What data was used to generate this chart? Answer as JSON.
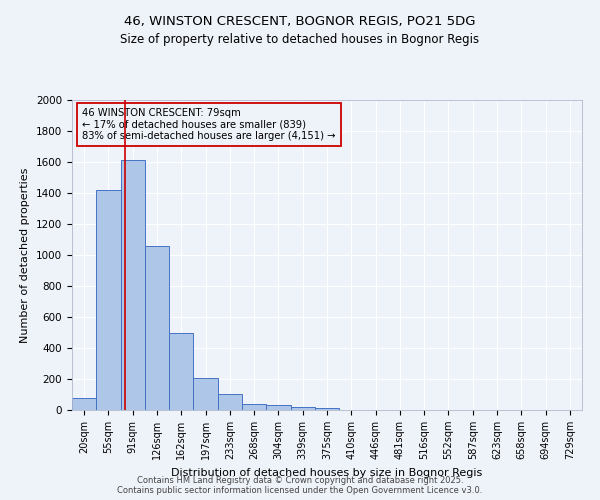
{
  "title1": "46, WINSTON CRESCENT, BOGNOR REGIS, PO21 5DG",
  "title2": "Size of property relative to detached houses in Bognor Regis",
  "xlabel": "Distribution of detached houses by size in Bognor Regis",
  "ylabel": "Number of detached properties",
  "bar_labels": [
    "20sqm",
    "55sqm",
    "91sqm",
    "126sqm",
    "162sqm",
    "197sqm",
    "233sqm",
    "268sqm",
    "304sqm",
    "339sqm",
    "375sqm",
    "410sqm",
    "446sqm",
    "481sqm",
    "516sqm",
    "552sqm",
    "587sqm",
    "623sqm",
    "658sqm",
    "694sqm",
    "729sqm"
  ],
  "bar_values": [
    80,
    1420,
    1610,
    1055,
    500,
    205,
    105,
    40,
    30,
    20,
    15,
    0,
    0,
    0,
    0,
    0,
    0,
    0,
    0,
    0,
    0
  ],
  "bar_color": "#aec6e8",
  "bar_edge_color": "#4472c4",
  "annotation_line_color": "#cc0000",
  "annotation_text_line1": "46 WINSTON CRESCENT: 79sqm",
  "annotation_text_line2": "← 17% of detached houses are smaller (839)",
  "annotation_text_line3": "83% of semi-detached houses are larger (4,151) →",
  "ylim": [
    0,
    2000
  ],
  "yticks": [
    0,
    200,
    400,
    600,
    800,
    1000,
    1200,
    1400,
    1600,
    1800,
    2000
  ],
  "bg_color": "#eef2f9",
  "grid_color": "#ffffff",
  "footer1": "Contains HM Land Registry data © Crown copyright and database right 2025.",
  "footer2": "Contains public sector information licensed under the Open Government Licence v3.0."
}
